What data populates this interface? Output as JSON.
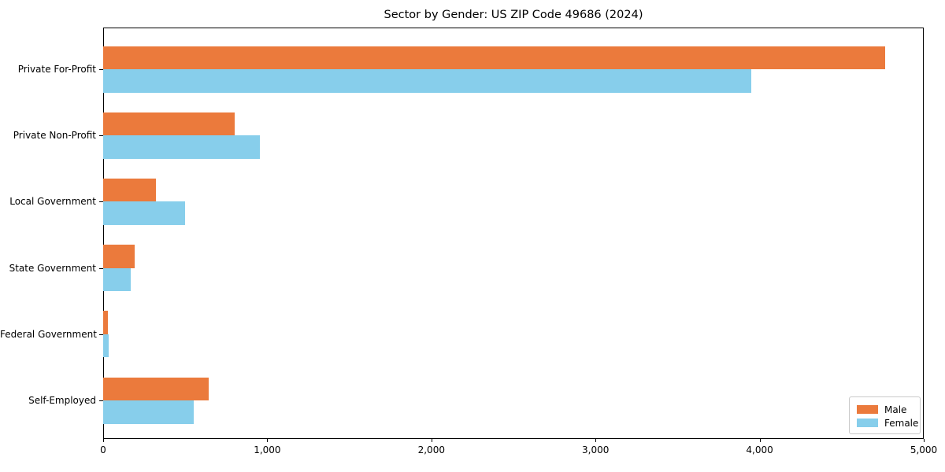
{
  "title": "Sector by Gender: US ZIP Code 49686 (2024)",
  "chart_data": {
    "type": "bar",
    "orientation": "horizontal",
    "title": "Sector by Gender: US ZIP Code 49686 (2024)",
    "categories": [
      "Private For-Profit",
      "Private Non-Profit",
      "Local Government",
      "State Government",
      "Federal Government",
      "Self-Employed"
    ],
    "series": [
      {
        "name": "Male",
        "color": "#eb7a3c",
        "values": [
          4765,
          800,
          320,
          190,
          30,
          645
        ]
      },
      {
        "name": "Female",
        "color": "#87ceeb",
        "values": [
          3950,
          955,
          500,
          170,
          35,
          550
        ]
      }
    ],
    "xlabel": "",
    "ylabel": "",
    "xlim": [
      0,
      5000
    ],
    "x_ticks": [
      0,
      1000,
      2000,
      3000,
      4000,
      5000
    ],
    "x_tick_labels": [
      "0",
      "1,000",
      "2,000",
      "3,000",
      "4,000",
      "5,000"
    ],
    "grid": false,
    "legend_position": "lower right",
    "background": "#ffffff"
  }
}
